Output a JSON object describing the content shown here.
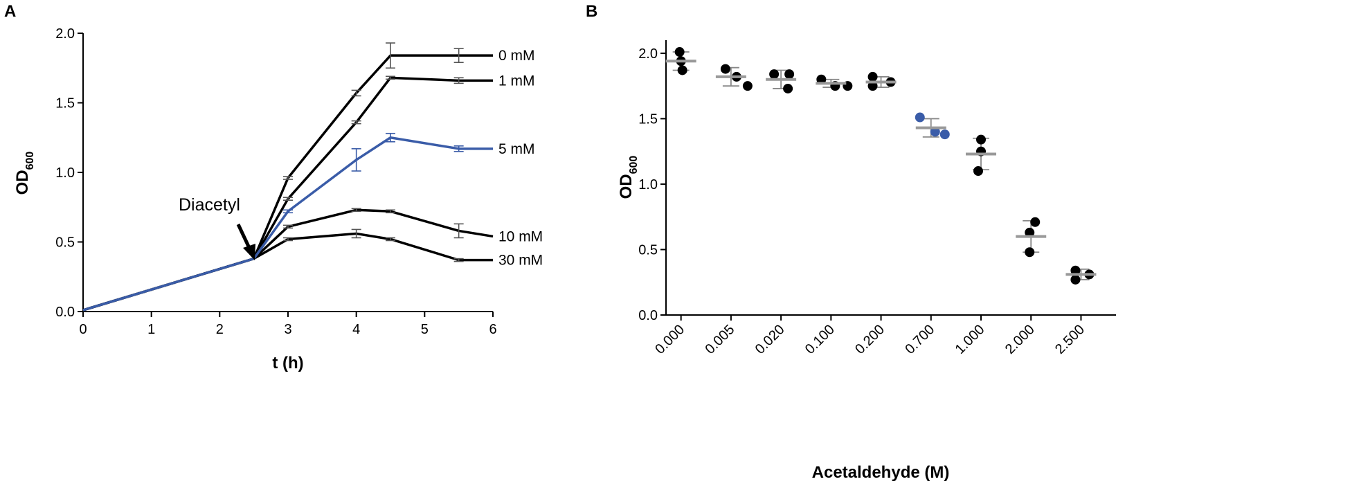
{
  "chart_data": [
    {
      "panel": "A",
      "type": "line",
      "xlabel": "t (h)",
      "ylabel_main": "OD",
      "ylabel_sub": "600",
      "xlim": [
        0,
        6
      ],
      "ylim": [
        0,
        2
      ],
      "xticks": [
        "0",
        "1",
        "2",
        "3",
        "4",
        "5",
        "6"
      ],
      "yticks": [
        "0.0",
        "0.5",
        "1.0",
        "1.5",
        "2.0"
      ],
      "annotation": "Diacetyl",
      "annotation_x": 2.5,
      "annotation_y": 0.38,
      "x": [
        0,
        2.5,
        3,
        4,
        4.5,
        5.5,
        6
      ],
      "series": [
        {
          "name": "0 mM",
          "color": "#000000",
          "values": [
            0.01,
            0.38,
            0.96,
            1.57,
            1.84,
            1.84,
            1.84
          ],
          "errors": [
            0,
            0,
            0.01,
            0.02,
            0.09,
            0.05,
            0
          ]
        },
        {
          "name": "1 mM",
          "color": "#000000",
          "values": [
            0.01,
            0.38,
            0.81,
            1.36,
            1.68,
            1.66,
            1.66
          ],
          "errors": [
            0,
            0,
            0.01,
            0.01,
            0.01,
            0.02,
            0
          ]
        },
        {
          "name": "5 mM",
          "color": "#3a5ca8",
          "values": [
            0.01,
            0.38,
            0.72,
            1.09,
            1.25,
            1.17,
            1.17
          ],
          "errors": [
            0,
            0,
            0.01,
            0.08,
            0.03,
            0.02,
            0
          ]
        },
        {
          "name": "10 mM",
          "color": "#000000",
          "values": [
            0.01,
            0.38,
            0.61,
            0.73,
            0.72,
            0.58,
            0.54
          ],
          "errors": [
            0,
            0,
            0.01,
            0.01,
            0.01,
            0.05,
            0
          ]
        },
        {
          "name": "30 mM",
          "color": "#000000",
          "values": [
            0.01,
            0.38,
            0.52,
            0.56,
            0.52,
            0.37,
            0.37
          ],
          "errors": [
            0,
            0,
            0.01,
            0.03,
            0.01,
            0.01,
            0
          ]
        }
      ]
    },
    {
      "panel": "B",
      "type": "scatter",
      "xlabel": "Acetaldehyde (M)",
      "ylabel_main": "OD",
      "ylabel_sub": "600",
      "ylim": [
        0,
        2.1
      ],
      "yticks": [
        "0.0",
        "0.5",
        "1.0",
        "1.5",
        "2.0"
      ],
      "categories": [
        "0.000",
        "0.005",
        "0.020",
        "0.100",
        "0.200",
        "0.700",
        "1.000",
        "2.000",
        "2.500"
      ],
      "groups": [
        {
          "points": [
            2.01,
            1.94,
            1.87
          ],
          "mean": 1.94,
          "sd": 0.07,
          "color": "#000000"
        },
        {
          "points": [
            1.88,
            1.82,
            1.75
          ],
          "mean": 1.82,
          "sd": 0.07,
          "color": "#000000"
        },
        {
          "points": [
            1.84,
            1.84,
            1.73
          ],
          "mean": 1.8,
          "sd": 0.07,
          "color": "#000000"
        },
        {
          "points": [
            1.8,
            1.75,
            1.75
          ],
          "mean": 1.77,
          "sd": 0.03,
          "color": "#000000"
        },
        {
          "points": [
            1.82,
            1.75,
            1.78
          ],
          "mean": 1.78,
          "sd": 0.04,
          "color": "#000000"
        },
        {
          "points": [
            1.51,
            1.4,
            1.38
          ],
          "mean": 1.43,
          "sd": 0.07,
          "color": "#3a5ca8"
        },
        {
          "points": [
            1.34,
            1.25,
            1.1
          ],
          "mean": 1.23,
          "sd": 0.12,
          "color": "#000000"
        },
        {
          "points": [
            0.71,
            0.63,
            0.48
          ],
          "mean": 0.6,
          "sd": 0.12,
          "color": "#000000"
        },
        {
          "points": [
            0.34,
            0.27,
            0.31
          ],
          "mean": 0.31,
          "sd": 0.04,
          "color": "#000000"
        }
      ]
    }
  ]
}
